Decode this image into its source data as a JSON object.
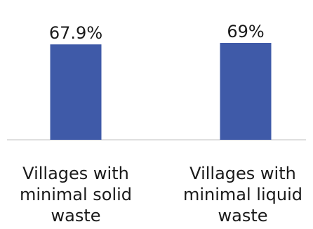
{
  "chart_data": {
    "type": "bar",
    "categories": [
      "Villages with minimal solid waste",
      "Villages with minimal liquid waste"
    ],
    "values": [
      67.9,
      69
    ],
    "data_labels": [
      "67.9%",
      "69%"
    ],
    "title": "",
    "xlabel": "",
    "ylabel": "",
    "ylim": [
      0,
      100
    ],
    "grid": false,
    "legend": "none",
    "colors": {
      "bar": "#3f5aa8",
      "axis": "#bfbfbf"
    }
  },
  "labels": {
    "cat0": [
      "Villages with",
      "minimal solid",
      "waste"
    ],
    "cat1": [
      "Villages with",
      "minimal liquid",
      "waste"
    ]
  }
}
